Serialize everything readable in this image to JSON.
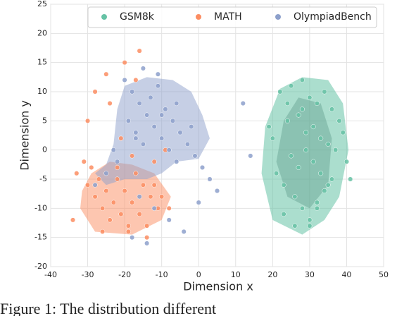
{
  "chart_data": {
    "type": "scatter",
    "xlabel": "Dimension x",
    "ylabel": "Dimension y",
    "xlim": [
      -40,
      50
    ],
    "xticks": [
      -40,
      -30,
      -20,
      -10,
      0,
      10,
      20,
      30,
      40,
      50
    ],
    "ylim": [
      -20,
      25
    ],
    "yticks": [
      -20,
      -15,
      -10,
      -5,
      0,
      5,
      10,
      15,
      20,
      25
    ],
    "grid": true,
    "legend": "upper center",
    "series": [
      {
        "name": "GSM8k",
        "color": "#66c2a5",
        "x": [
          22,
          25,
          28,
          30,
          32,
          34,
          36,
          38,
          24,
          27,
          29,
          31,
          33,
          35,
          37,
          40,
          21,
          23,
          26,
          28,
          30,
          32,
          34,
          36,
          25,
          27,
          29,
          31,
          33,
          35,
          20,
          23,
          26,
          39,
          41,
          28,
          30,
          24,
          32,
          19
        ],
        "values": [
          10,
          11,
          12,
          9,
          8,
          10,
          7,
          5,
          5,
          6,
          3,
          4,
          2,
          1,
          0,
          -2,
          -4,
          -6,
          -8,
          -10,
          -12,
          -9,
          -7,
          -5,
          -1,
          -3,
          0,
          -2,
          -4,
          -6,
          2,
          -11,
          -13,
          3,
          -5,
          7,
          -13,
          8,
          -10,
          4
        ]
      },
      {
        "name": "MATH",
        "color": "#fc8d62",
        "x": [
          -33,
          -30,
          -28,
          -26,
          -24,
          -22,
          -20,
          -18,
          -16,
          -14,
          -12,
          -10,
          -8,
          -31,
          -29,
          -27,
          -25,
          -23,
          -21,
          -19,
          -17,
          -15,
          -13,
          -11,
          -34,
          -26,
          -22,
          -18,
          -14,
          -20,
          -25,
          -30,
          -16,
          -12,
          -9,
          -24,
          -19,
          -28,
          -17,
          -21
        ],
        "values": [
          -4,
          -6,
          -8,
          -10,
          -12,
          -5,
          -7,
          -9,
          -11,
          -13,
          -6,
          -8,
          -10,
          -2,
          -3,
          -5,
          -7,
          -9,
          -11,
          -13,
          -4,
          -6,
          -8,
          -10,
          -12,
          -14,
          -3,
          -1,
          -15,
          15,
          13,
          5,
          17,
          -2,
          0,
          8,
          -14,
          10,
          12,
          2
        ]
      },
      {
        "name": "OlympiadBench",
        "color": "#8da0cb",
        "x": [
          -20,
          -18,
          -16,
          -14,
          -12,
          -10,
          -8,
          -6,
          -19,
          -17,
          -15,
          -13,
          -11,
          -9,
          -7,
          -5,
          -3,
          -1,
          1,
          3,
          -22,
          -25,
          -28,
          -23,
          -16,
          -12,
          -8,
          -4,
          0,
          5,
          -15,
          -11,
          -18,
          -14,
          -10,
          -6,
          -2,
          12,
          14,
          -17
        ],
        "values": [
          12,
          10,
          8,
          6,
          4,
          2,
          0,
          -2,
          5,
          3,
          1,
          9,
          11,
          7,
          5,
          3,
          1,
          -1,
          -3,
          -5,
          -2,
          -4,
          -6,
          0,
          -8,
          -10,
          -12,
          -14,
          -9,
          -7,
          14,
          13,
          -15,
          -16,
          6,
          8,
          4,
          8,
          -1,
          2
        ]
      }
    ]
  },
  "caption": "Figure 1:  The distribution different"
}
